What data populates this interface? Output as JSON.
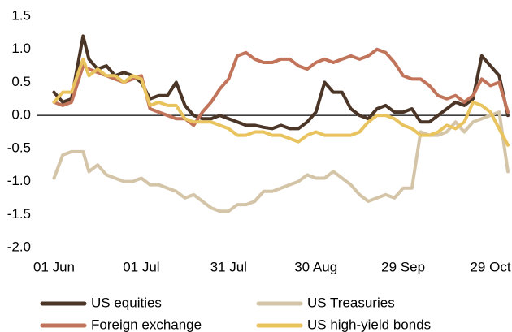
{
  "chart_data": {
    "type": "line",
    "x": [
      0,
      3,
      6,
      10,
      12,
      15,
      18,
      21,
      24,
      27,
      30,
      33,
      36,
      39,
      42,
      45,
      48,
      51,
      54,
      57,
      60,
      63,
      66,
      69,
      72,
      75,
      78,
      81,
      84,
      87,
      90,
      93,
      96,
      99,
      102,
      105,
      108,
      111,
      114,
      117,
      120,
      123,
      126,
      129,
      132,
      135,
      138,
      141,
      144,
      147,
      150,
      153,
      156
    ],
    "xlim": [
      -6,
      156
    ],
    "xticks": [
      {
        "value": 0,
        "label": "01 Jun"
      },
      {
        "value": 30,
        "label": "01 Jul"
      },
      {
        "value": 60,
        "label": "31 Jul"
      },
      {
        "value": 90,
        "label": "30 Aug"
      },
      {
        "value": 120,
        "label": "29 Sep"
      },
      {
        "value": 150,
        "label": "29 Oct"
      }
    ],
    "ylim": [
      -2,
      1.5
    ],
    "yticks": [
      {
        "value": 1.5,
        "label": "1.5"
      },
      {
        "value": 1,
        "label": "1.0"
      },
      {
        "value": 0.5,
        "label": "0.5"
      },
      {
        "value": 0,
        "label": "0.0"
      },
      {
        "value": -0.5,
        "label": "-0.5"
      },
      {
        "value": -1,
        "label": "-1.0"
      },
      {
        "value": -1.5,
        "label": "-1.5"
      },
      {
        "value": -2,
        "label": "-2.0"
      }
    ],
    "grid": false,
    "series": [
      {
        "name": "US equities",
        "color": "#4b3527",
        "values": [
          0.35,
          0.2,
          0.25,
          1.2,
          0.85,
          0.7,
          0.75,
          0.6,
          0.65,
          0.6,
          0.5,
          0.25,
          0.3,
          0.3,
          0.5,
          0.15,
          0.0,
          -0.05,
          -0.05,
          0.0,
          -0.05,
          -0.1,
          -0.15,
          -0.15,
          -0.18,
          -0.2,
          -0.15,
          -0.2,
          -0.2,
          -0.1,
          0.05,
          0.5,
          0.35,
          0.35,
          0.1,
          0.0,
          -0.05,
          0.1,
          0.15,
          0.05,
          0.05,
          0.1,
          -0.1,
          -0.1,
          0.0,
          0.1,
          0.2,
          0.15,
          0.25,
          0.9,
          0.75,
          0.6,
          0.0
        ]
      },
      {
        "name": "US Treasuries",
        "color": "#d5c5a8",
        "values": [
          -0.95,
          -0.6,
          -0.55,
          -0.55,
          -0.85,
          -0.75,
          -0.9,
          -0.95,
          -1.0,
          -1.0,
          -0.95,
          -1.05,
          -1.05,
          -1.1,
          -1.15,
          -1.25,
          -1.2,
          -1.3,
          -1.4,
          -1.45,
          -1.45,
          -1.35,
          -1.35,
          -1.3,
          -1.15,
          -1.15,
          -1.1,
          -1.05,
          -1.0,
          -0.9,
          -0.95,
          -0.95,
          -0.85,
          -0.95,
          -1.05,
          -1.2,
          -1.3,
          -1.25,
          -1.2,
          -1.25,
          -1.1,
          -1.1,
          -0.25,
          -0.3,
          -0.3,
          -0.25,
          -0.1,
          -0.25,
          -0.1,
          -0.05,
          0.0,
          0.05,
          -0.85
        ]
      },
      {
        "name": "Foreign exchange",
        "color": "#c2745a",
        "values": [
          0.2,
          0.15,
          0.2,
          0.75,
          0.7,
          0.65,
          0.6,
          0.55,
          0.5,
          0.55,
          0.6,
          0.1,
          0.05,
          0.0,
          -0.05,
          -0.05,
          -0.15,
          0.05,
          0.2,
          0.4,
          0.55,
          0.9,
          0.95,
          0.85,
          0.8,
          0.8,
          0.85,
          0.85,
          0.75,
          0.7,
          0.8,
          0.85,
          0.8,
          0.85,
          0.9,
          0.85,
          0.9,
          1.0,
          0.95,
          0.8,
          0.6,
          0.55,
          0.55,
          0.45,
          0.3,
          0.25,
          0.3,
          0.2,
          0.3,
          0.55,
          0.45,
          0.5,
          0.05
        ]
      },
      {
        "name": "US high-yield bonds",
        "color": "#e8c35e",
        "values": [
          0.2,
          0.35,
          0.35,
          0.85,
          0.6,
          0.7,
          0.6,
          0.6,
          0.5,
          0.6,
          0.55,
          0.15,
          0.2,
          0.15,
          0.15,
          -0.05,
          -0.1,
          -0.1,
          -0.1,
          -0.15,
          -0.2,
          -0.3,
          -0.3,
          -0.25,
          -0.25,
          -0.3,
          -0.3,
          -0.35,
          -0.4,
          -0.3,
          -0.25,
          -0.3,
          -0.3,
          -0.3,
          -0.3,
          -0.25,
          -0.1,
          0.0,
          0.0,
          -0.05,
          -0.15,
          -0.2,
          -0.3,
          -0.3,
          -0.25,
          -0.15,
          -0.2,
          -0.1,
          0.2,
          0.15,
          0.05,
          -0.2,
          -0.45
        ]
      }
    ]
  }
}
